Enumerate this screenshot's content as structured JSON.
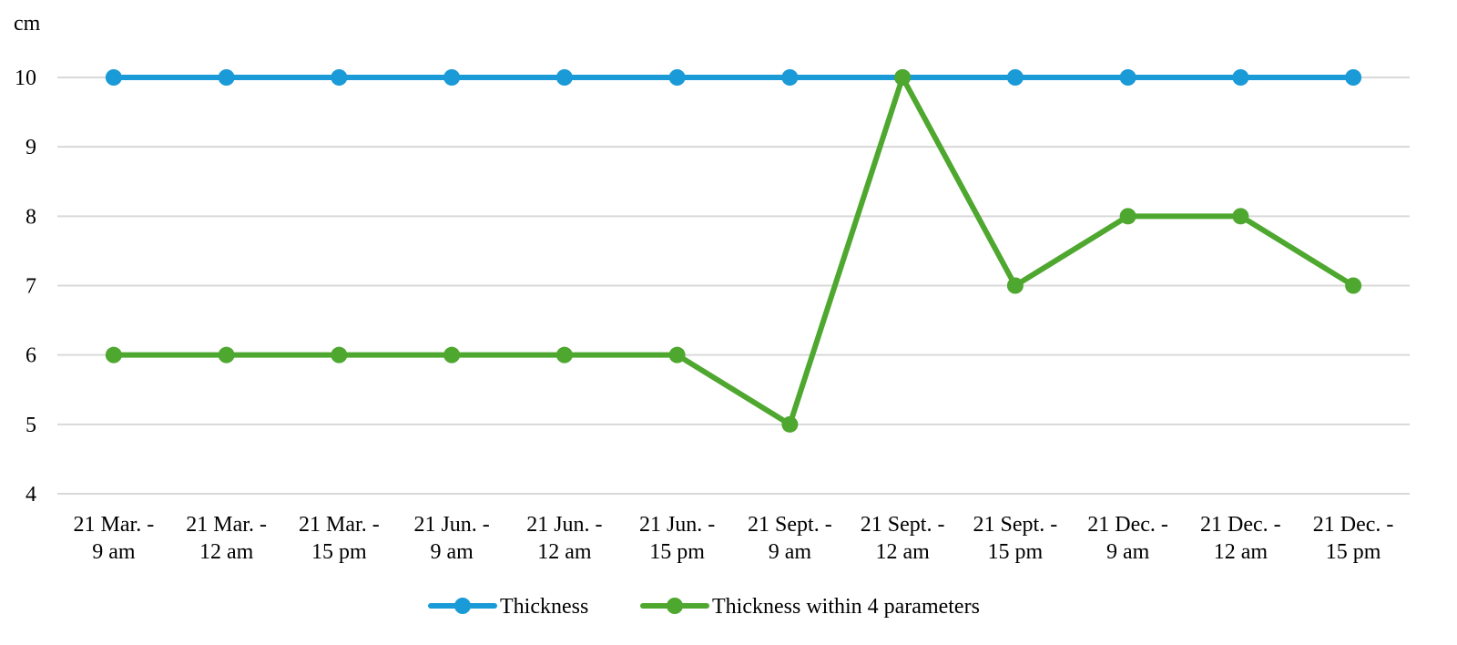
{
  "chart_data": {
    "type": "line",
    "ylabel": "cm",
    "xlabel": "",
    "ylim": [
      4,
      10
    ],
    "yticks": [
      4,
      5,
      6,
      7,
      8,
      9,
      10
    ],
    "grid": true,
    "legend_position": "bottom",
    "categories": [
      [
        "21 Mar. -",
        "9 am"
      ],
      [
        "21 Mar. -",
        "12 am"
      ],
      [
        "21 Mar. -",
        "15 pm"
      ],
      [
        "21 Jun. -",
        "9 am"
      ],
      [
        "21 Jun. -",
        "12 am"
      ],
      [
        "21 Jun. -",
        "15 pm"
      ],
      [
        "21 Sept. -",
        "9 am"
      ],
      [
        "21 Sept. -",
        "12 am"
      ],
      [
        "21 Sept. -",
        "15 pm"
      ],
      [
        "21 Dec. -",
        "9 am"
      ],
      [
        "21 Dec. -",
        "12 am"
      ],
      [
        "21 Dec. -",
        "15 pm"
      ]
    ],
    "series": [
      {
        "name": "Thickness",
        "color": "#1a9ad6",
        "values": [
          10,
          10,
          10,
          10,
          10,
          10,
          10,
          10,
          10,
          10,
          10,
          10
        ]
      },
      {
        "name": "Thickness within 4 parameters",
        "color": "#4ea72e",
        "values": [
          6,
          6,
          6,
          6,
          6,
          6,
          5,
          10,
          7,
          8,
          8,
          7
        ]
      }
    ]
  }
}
